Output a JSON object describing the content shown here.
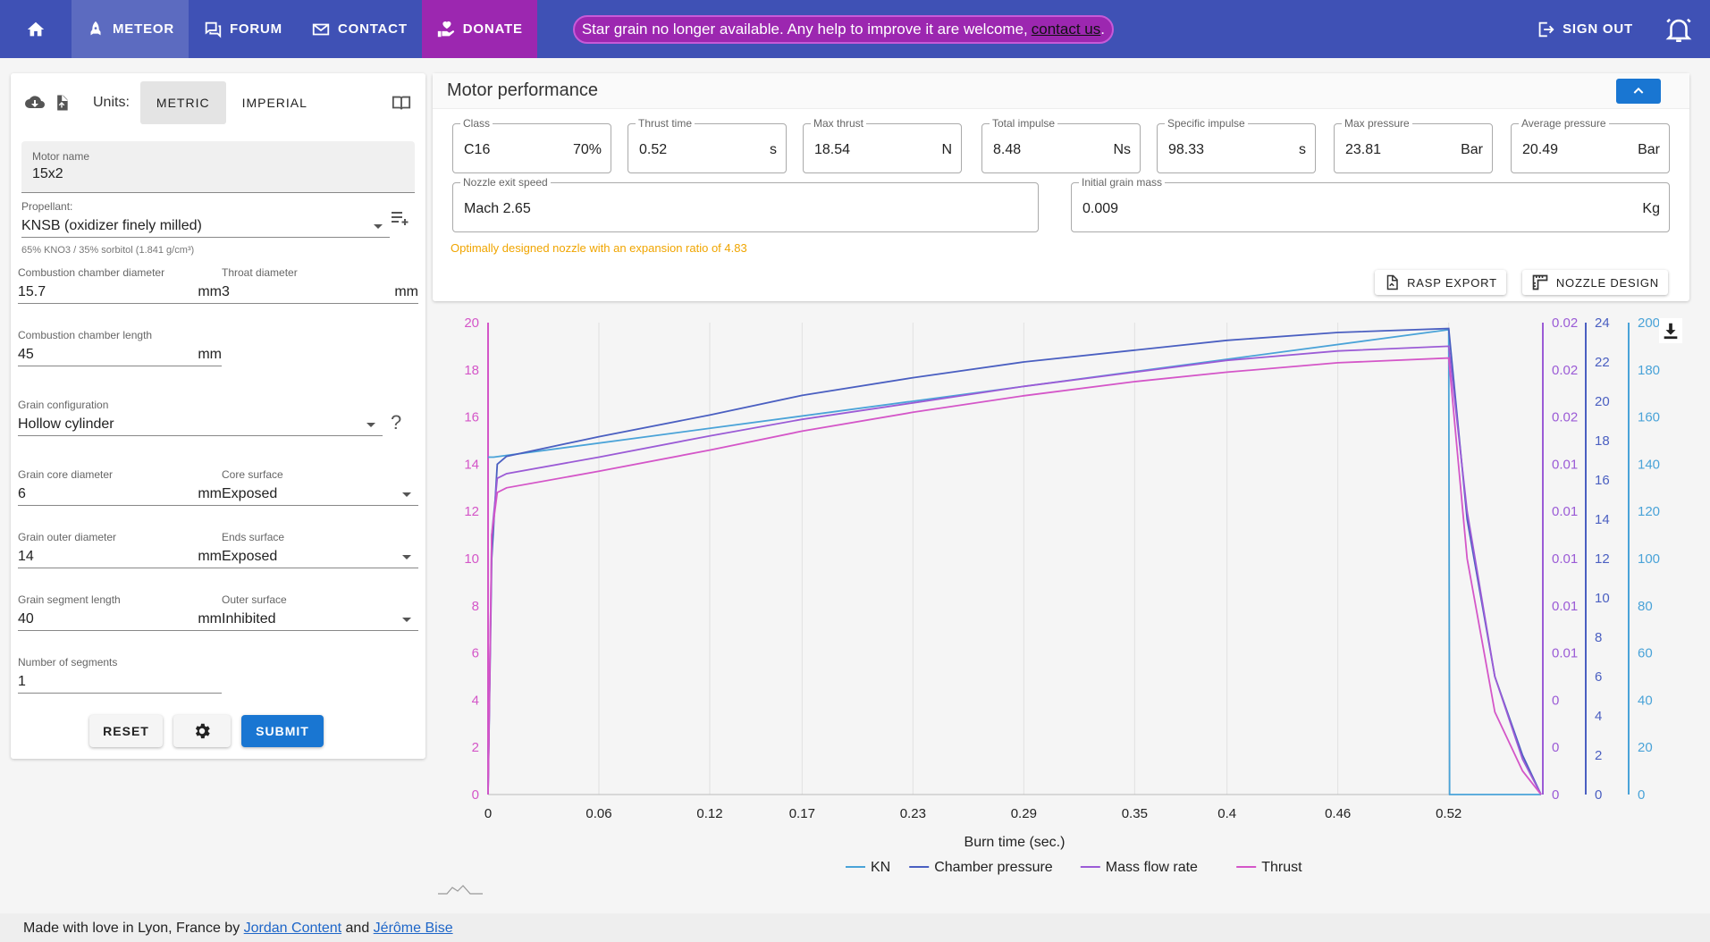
{
  "nav": {
    "items": [
      {
        "name": "meteor",
        "label": "METEOR"
      },
      {
        "name": "forum",
        "label": "FORUM"
      },
      {
        "name": "contact",
        "label": "CONTACT"
      },
      {
        "name": "donate",
        "label": "DONATE"
      }
    ],
    "alert": {
      "text": "Star grain no longer available. Any help to improve it are welcome,",
      "link": "contact us",
      "suffix": "."
    },
    "sign_out": "SIGN OUT"
  },
  "left_panel": {
    "units_label": "Units:",
    "units": [
      "METRIC",
      "IMPERIAL"
    ],
    "motor_name": {
      "label": "Motor name",
      "value": "15x2"
    },
    "propellant": {
      "label": "Propellant:",
      "value": "KNSB (oxidizer finely milled)",
      "note": "65% KNO3 / 35% sorbitol (1.841 g/cm³)"
    },
    "chamber_diameter": {
      "label": "Combustion chamber diameter",
      "value": "15.7",
      "unit": "mm"
    },
    "throat_diameter": {
      "label": "Throat diameter",
      "value": "3",
      "unit": "mm"
    },
    "chamber_length": {
      "label": "Combustion chamber length",
      "value": "45",
      "unit": "mm"
    },
    "grain_config": {
      "label": "Grain configuration",
      "value": "Hollow cylinder",
      "help": "?"
    },
    "core_diameter": {
      "label": "Grain core diameter",
      "value": "6",
      "unit": "mm"
    },
    "core_surface": {
      "label": "Core surface",
      "value": "Exposed"
    },
    "outer_diameter": {
      "label": "Grain outer diameter",
      "value": "14",
      "unit": "mm"
    },
    "ends_surface": {
      "label": "Ends surface",
      "value": "Exposed"
    },
    "segment_length": {
      "label": "Grain segment length",
      "value": "40",
      "unit": "mm"
    },
    "outer_surface": {
      "label": "Outer surface",
      "value": "Inhibited"
    },
    "segments": {
      "label": "Number of segments",
      "value": "1"
    },
    "reset": "RESET",
    "submit": "SUBMIT"
  },
  "performance": {
    "title": "Motor performance",
    "fields": [
      {
        "label": "Class",
        "value": "C16",
        "unit": "70%"
      },
      {
        "label": "Thrust time",
        "value": "0.52",
        "unit": "s"
      },
      {
        "label": "Max thrust",
        "value": "18.54",
        "unit": "N"
      },
      {
        "label": "Total impulse",
        "value": "8.48",
        "unit": "Ns"
      },
      {
        "label": "Specific impulse",
        "value": "98.33",
        "unit": "s"
      },
      {
        "label": "Max pressure",
        "value": "23.81",
        "unit": "Bar"
      },
      {
        "label": "Average pressure",
        "value": "20.49",
        "unit": "Bar"
      }
    ],
    "nozzle_exit": {
      "label": "Nozzle exit speed",
      "value": "Mach 2.65"
    },
    "grain_mass": {
      "label": "Initial grain mass",
      "value": "0.009",
      "unit": "Kg"
    },
    "nozzle_note": "Optimally designed nozzle with an expansion ratio of 4.83",
    "rasp_export": "RASP EXPORT",
    "nozzle_design": "NOZZLE DESIGN"
  },
  "colors": {
    "kn": "#4aa3d8",
    "pressure": "#4a5fc1",
    "mass_flow": "#9b5bd6",
    "thrust": "#d456c8"
  },
  "chart_data": {
    "type": "line",
    "xlabel": "Burn time (sec.)",
    "x_ticks": [
      "0",
      "0.06",
      "0.12",
      "0.17",
      "0.23",
      "0.29",
      "0.35",
      "0.4",
      "0.46",
      "0.52"
    ],
    "x_tick_values": [
      0,
      0.06,
      0.12,
      0.17,
      0.23,
      0.29,
      0.35,
      0.4,
      0.46,
      0.52
    ],
    "xlim": [
      0,
      0.57
    ],
    "axes": {
      "thrust": {
        "ticks": [
          "0",
          "2",
          "4",
          "6",
          "8",
          "10",
          "12",
          "14",
          "16",
          "18",
          "20"
        ],
        "ylim": [
          0,
          20
        ]
      },
      "mass_flow": {
        "ticks": [
          "0",
          "0",
          "0",
          "0.01",
          "0.01",
          "0.01",
          "0.01",
          "0.01",
          "0.02",
          "0.02",
          "0.02"
        ],
        "ylim": [
          0,
          0.02
        ]
      },
      "pressure": {
        "ticks": [
          "0",
          "2",
          "4",
          "6",
          "8",
          "10",
          "12",
          "14",
          "16",
          "18",
          "20",
          "22",
          "24"
        ],
        "ylim": [
          0,
          24
        ]
      },
      "kn": {
        "ticks": [
          "0",
          "20",
          "40",
          "60",
          "80",
          "100",
          "120",
          "140",
          "160",
          "180",
          "200"
        ],
        "ylim": [
          0,
          200
        ]
      }
    },
    "series": [
      {
        "name": "KN",
        "x": [
          0,
          0.003,
          0.52,
          0.5205,
          0.57
        ],
        "y": [
          143,
          143,
          197,
          0,
          0
        ]
      },
      {
        "name": "Chamber pressure",
        "x": [
          0,
          0.002,
          0.005,
          0.01,
          0.06,
          0.12,
          0.17,
          0.23,
          0.29,
          0.35,
          0.4,
          0.46,
          0.52,
          0.53,
          0.545,
          0.56,
          0.57
        ],
        "y": [
          0,
          12,
          16.8,
          17.2,
          18.2,
          19.3,
          20.3,
          21.2,
          22.0,
          22.6,
          23.1,
          23.5,
          23.7,
          14,
          6,
          2,
          0
        ]
      },
      {
        "name": "Mass flow rate",
        "x": [
          0,
          0.002,
          0.005,
          0.01,
          0.06,
          0.12,
          0.17,
          0.23,
          0.29,
          0.35,
          0.4,
          0.46,
          0.52,
          0.53,
          0.545,
          0.56,
          0.57
        ],
        "y": [
          0,
          0.011,
          0.0134,
          0.0136,
          0.0143,
          0.0152,
          0.0159,
          0.0166,
          0.0173,
          0.0179,
          0.0184,
          0.0188,
          0.019,
          0.012,
          0.005,
          0.0015,
          0
        ]
      },
      {
        "name": "Thrust",
        "x": [
          0,
          0.002,
          0.005,
          0.01,
          0.06,
          0.12,
          0.17,
          0.23,
          0.29,
          0.35,
          0.4,
          0.46,
          0.52,
          0.53,
          0.545,
          0.56,
          0.57
        ],
        "y": [
          0,
          11,
          12.8,
          13.0,
          13.7,
          14.6,
          15.4,
          16.2,
          16.9,
          17.5,
          17.9,
          18.3,
          18.5,
          10,
          3.5,
          1,
          0
        ]
      }
    ],
    "legend": [
      "KN",
      "Chamber pressure",
      "Mass flow rate",
      "Thrust"
    ],
    "legend_position": "bottom",
    "grid": true
  },
  "footer": {
    "text": "Made with love in Lyon, France by",
    "author1": "Jordan Content",
    "and": "and",
    "author2": "Jérôme Bise"
  }
}
